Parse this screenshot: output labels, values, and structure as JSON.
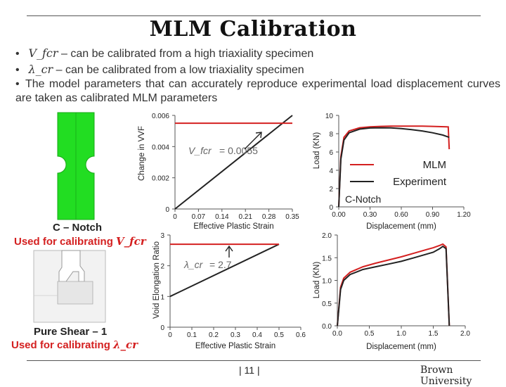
{
  "title": "MLM Calibration",
  "bullets": [
    {
      "symbol": "V_fcr",
      "text": " – can be calibrated from a high triaxiality specimen"
    },
    {
      "symbol": "λ_cr",
      "text": " – can be calibrated from a low triaxiality specimen"
    },
    {
      "text": "The model parameters that can accurately reproduce experimental load displacement curves are taken as calibrated MLM parameters"
    }
  ],
  "specimens": {
    "c_notch": {
      "name": "C – Notch",
      "usage": "Used for calibrating",
      "symbol": "V_fcr"
    },
    "pure_shear": {
      "name": "Pure Shear – 1",
      "usage": "Used for calibrating",
      "symbol": "λ_cr"
    }
  },
  "colors": {
    "red": "#d42020",
    "black": "#222222",
    "green": "#22dd22",
    "gray": "#777777"
  },
  "footer": {
    "page": "| 11 |",
    "org": "Brown University"
  },
  "chart_data": [
    {
      "id": "vvf",
      "type": "line",
      "ylabel": "Change in VVF",
      "xlabel": "Effective Plastic Strain",
      "xlim": [
        0,
        0.35
      ],
      "ylim": [
        0,
        0.006
      ],
      "xticks": [
        "0",
        "0.07",
        "0.14",
        "0.21",
        "0.28",
        "0.35"
      ],
      "yticks": [
        "0",
        "0.002",
        "0.004",
        "0.006"
      ],
      "annotation": {
        "symbol": "V_fcr",
        "value": "= 0.0055"
      },
      "series": [
        {
          "name": "Change in VVF",
          "color": "#222222",
          "x": [
            0,
            0.35
          ],
          "y": [
            0,
            0.006
          ]
        },
        {
          "name": "V_fcr threshold",
          "color": "#d42020",
          "x": [
            0,
            0.35
          ],
          "y": [
            0.0055,
            0.0055
          ]
        }
      ]
    },
    {
      "id": "vel",
      "type": "line",
      "ylabel": "Void Elongation Ratio",
      "xlabel": "Effective Plastic Strain",
      "xlim": [
        0,
        0.6
      ],
      "ylim": [
        0,
        3
      ],
      "xticks": [
        "0",
        "0.1",
        "0.2",
        "0.3",
        "0.4",
        "0.5",
        "0.6"
      ],
      "yticks": [
        "0",
        "1",
        "2",
        "3"
      ],
      "annotation": {
        "symbol": "λ_cr",
        "value": "= 2.7"
      },
      "series": [
        {
          "name": "Void Elongation Ratio",
          "color": "#222222",
          "x": [
            0,
            0.5
          ],
          "y": [
            1,
            2.7
          ]
        },
        {
          "name": "λ_cr threshold",
          "color": "#d42020",
          "x": [
            0,
            0.5
          ],
          "y": [
            2.7,
            2.7
          ]
        }
      ]
    },
    {
      "id": "load_cnotch",
      "type": "line",
      "ylabel": "Load (KN)",
      "xlabel": "Displacement (mm)",
      "xlim": [
        0,
        1.2
      ],
      "ylim": [
        0,
        10
      ],
      "xticks": [
        "0.00",
        "0.30",
        "0.60",
        "0.90",
        "1.20"
      ],
      "yticks": [
        "0",
        "2",
        "4",
        "6",
        "8",
        "10"
      ],
      "legend": [
        "MLM",
        "Experiment"
      ],
      "label": "C-Notch",
      "series": [
        {
          "name": "MLM",
          "color": "#d42020",
          "x": [
            0,
            0.02,
            0.05,
            0.1,
            0.2,
            0.3,
            0.4,
            0.5,
            0.6,
            0.7,
            0.8,
            0.9,
            1.05,
            1.06
          ],
          "y": [
            0,
            5.5,
            7.6,
            8.3,
            8.65,
            8.75,
            8.8,
            8.82,
            8.83,
            8.83,
            8.82,
            8.8,
            8.75,
            6.3
          ]
        },
        {
          "name": "Experiment",
          "color": "#222222",
          "x": [
            0,
            0.02,
            0.05,
            0.1,
            0.2,
            0.3,
            0.4,
            0.5,
            0.6,
            0.7,
            0.8,
            0.9,
            1.0,
            1.06
          ],
          "y": [
            0,
            5.2,
            7.3,
            8.1,
            8.5,
            8.62,
            8.65,
            8.63,
            8.55,
            8.45,
            8.3,
            8.1,
            7.85,
            7.6
          ]
        }
      ]
    },
    {
      "id": "load_shear",
      "type": "line",
      "ylabel": "Load (KN)",
      "xlabel": "Displacement (mm)",
      "xlim": [
        0,
        2.0
      ],
      "ylim": [
        0,
        2.0
      ],
      "xticks": [
        "0.0",
        "0.5",
        "1.0",
        "1.5",
        "2.0"
      ],
      "yticks": [
        "0.0",
        "0.5",
        "1.0",
        "1.5",
        "2.0"
      ],
      "series": [
        {
          "name": "MLM",
          "color": "#d42020",
          "x": [
            0,
            0.05,
            0.1,
            0.2,
            0.4,
            0.6,
            0.8,
            1.0,
            1.2,
            1.4,
            1.5,
            1.6,
            1.65,
            1.7,
            1.75
          ],
          "y": [
            0,
            0.85,
            1.05,
            1.18,
            1.3,
            1.38,
            1.45,
            1.52,
            1.6,
            1.68,
            1.72,
            1.77,
            1.8,
            1.74,
            0
          ]
        },
        {
          "name": "Experiment",
          "color": "#222222",
          "x": [
            0,
            0.05,
            0.1,
            0.2,
            0.4,
            0.6,
            0.8,
            1.0,
            1.2,
            1.4,
            1.5,
            1.6,
            1.65,
            1.7,
            1.75
          ],
          "y": [
            0,
            0.8,
            1.0,
            1.13,
            1.24,
            1.3,
            1.36,
            1.42,
            1.5,
            1.58,
            1.62,
            1.7,
            1.75,
            1.7,
            0
          ]
        }
      ]
    }
  ]
}
